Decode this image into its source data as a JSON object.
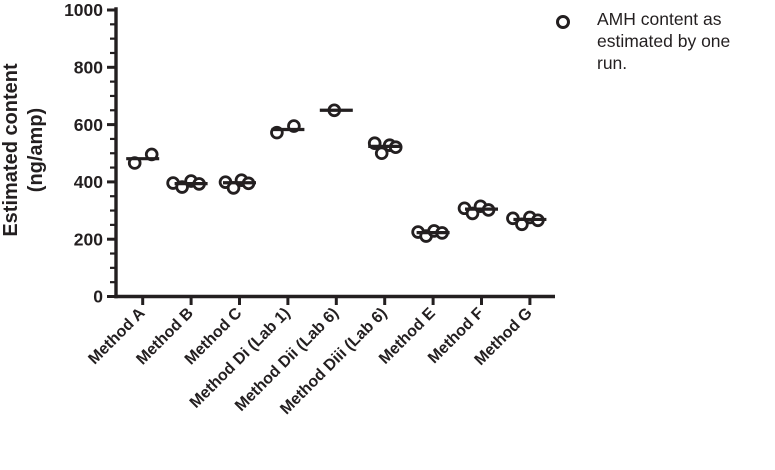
{
  "colors": {
    "ink": "#231f20",
    "background": "#ffffff"
  },
  "legend": {
    "marker": "open-circle",
    "lines": [
      "AMH content as",
      "estimated by one",
      "run."
    ]
  },
  "chart_data": {
    "type": "scatter",
    "title": "",
    "ylabel_lines": [
      "Estimated content",
      "(ng/amp)"
    ],
    "xlabel": "",
    "ylim": [
      0,
      1000
    ],
    "yticks": [
      "0",
      "200",
      "400",
      "600",
      "800",
      "1000"
    ],
    "y_minor_step": 50,
    "grid": false,
    "marker_style": "open-circle",
    "median_line": true,
    "legend_position": "top-right",
    "categories": [
      "Method A",
      "Method B",
      "Method C",
      "Method Di (Lab 1)",
      "Method Dii (Lab 6)",
      "Method Diii (Lab 6)",
      "Method E",
      "Method F",
      "Method G"
    ],
    "groups": [
      {
        "label": "Method A",
        "values": [
          466,
          496
        ],
        "median": 481,
        "dx": [
          -8,
          9
        ]
      },
      {
        "label": "Method B",
        "values": [
          396,
          382,
          403,
          393
        ],
        "median": 394,
        "dx": [
          -18,
          -9,
          0,
          8
        ]
      },
      {
        "label": "Method C",
        "values": [
          399,
          379,
          406,
          395
        ],
        "median": 397,
        "dx": [
          -14,
          -6,
          2,
          9
        ]
      },
      {
        "label": "Method Di (Lab 1)",
        "values": [
          572,
          595
        ],
        "median": 583,
        "dx": [
          -11,
          6
        ]
      },
      {
        "label": "Method Dii (Lab 6)",
        "values": [
          650
        ],
        "median": 650,
        "dx": [
          -2
        ]
      },
      {
        "label": "Method Diii (Lab 6)",
        "values": [
          535,
          500,
          528,
          521
        ],
        "median": 524,
        "dx": [
          -10,
          -3,
          5,
          11
        ]
      },
      {
        "label": "Method E",
        "values": [
          225,
          211,
          229,
          222
        ],
        "median": 223,
        "dx": [
          -15,
          -7,
          1,
          9
        ]
      },
      {
        "label": "Method F",
        "values": [
          308,
          290,
          315,
          302
        ],
        "median": 305,
        "dx": [
          -17,
          -9,
          -1,
          7
        ]
      },
      {
        "label": "Method G",
        "values": [
          273,
          252,
          276,
          266
        ],
        "median": 269,
        "dx": [
          -17,
          -8,
          0,
          8
        ]
      }
    ]
  }
}
